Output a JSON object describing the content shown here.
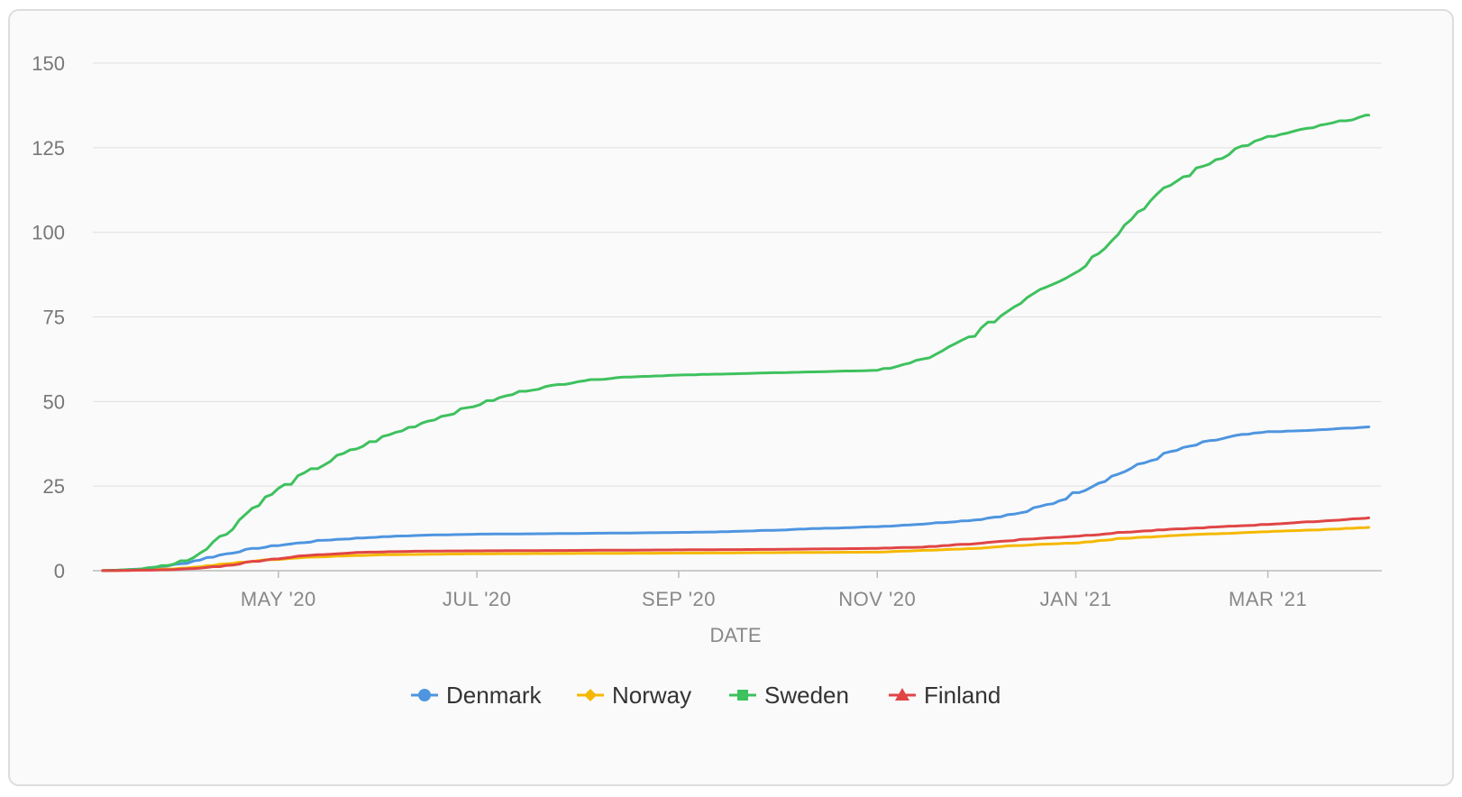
{
  "chart_data": {
    "type": "line",
    "xlabel": "DATE",
    "ylabel": "",
    "ylim": [
      0,
      150
    ],
    "yticks": [
      0,
      25,
      50,
      75,
      100,
      125,
      150
    ],
    "xlim": [
      "2020-03-05",
      "2021-04-05"
    ],
    "xticks": [
      {
        "date": "2020-05-01",
        "label": "MAY '20"
      },
      {
        "date": "2020-07-01",
        "label": "JUL '20"
      },
      {
        "date": "2020-09-01",
        "label": "SEP '20"
      },
      {
        "date": "2020-11-01",
        "label": "NOV '20"
      },
      {
        "date": "2021-01-01",
        "label": "JAN '21"
      },
      {
        "date": "2021-03-01",
        "label": "MAR '21"
      }
    ],
    "grid": true,
    "legend_position": "bottom",
    "series": [
      {
        "name": "Denmark",
        "color": "#4e95e0",
        "marker": "circle",
        "points": [
          [
            "2020-03-08",
            0
          ],
          [
            "2020-03-20",
            0.5
          ],
          [
            "2020-04-01",
            2
          ],
          [
            "2020-04-10",
            4
          ],
          [
            "2020-04-20",
            6
          ],
          [
            "2020-05-01",
            7.5
          ],
          [
            "2020-05-15",
            9
          ],
          [
            "2020-06-01",
            10
          ],
          [
            "2020-06-15",
            10.5
          ],
          [
            "2020-07-01",
            10.8
          ],
          [
            "2020-08-01",
            11
          ],
          [
            "2020-09-01",
            11.3
          ],
          [
            "2020-09-15",
            11.5
          ],
          [
            "2020-10-01",
            12
          ],
          [
            "2020-10-15",
            12.5
          ],
          [
            "2020-11-01",
            13
          ],
          [
            "2020-11-15",
            13.8
          ],
          [
            "2020-12-01",
            15
          ],
          [
            "2020-12-15",
            17
          ],
          [
            "2020-12-25",
            20
          ],
          [
            "2021-01-01",
            23
          ],
          [
            "2021-01-10",
            27
          ],
          [
            "2021-01-20",
            31
          ],
          [
            "2021-01-30",
            35
          ],
          [
            "2021-02-10",
            38
          ],
          [
            "2021-02-20",
            40
          ],
          [
            "2021-03-01",
            41
          ],
          [
            "2021-03-15",
            41.5
          ],
          [
            "2021-04-01",
            42.5
          ]
        ]
      },
      {
        "name": "Norway",
        "color": "#f5b800",
        "marker": "diamond",
        "points": [
          [
            "2020-03-08",
            0
          ],
          [
            "2020-03-25",
            0.3
          ],
          [
            "2020-04-05",
            1
          ],
          [
            "2020-04-15",
            2
          ],
          [
            "2020-04-25",
            3
          ],
          [
            "2020-05-10",
            4
          ],
          [
            "2020-06-01",
            4.7
          ],
          [
            "2020-07-01",
            5
          ],
          [
            "2020-09-01",
            5.2
          ],
          [
            "2020-11-01",
            5.5
          ],
          [
            "2020-11-15",
            6
          ],
          [
            "2020-12-01",
            6.6
          ],
          [
            "2020-12-15",
            7.5
          ],
          [
            "2021-01-01",
            8.2
          ],
          [
            "2021-01-15",
            9.5
          ],
          [
            "2021-02-01",
            10.5
          ],
          [
            "2021-02-15",
            11
          ],
          [
            "2021-03-01",
            11.6
          ],
          [
            "2021-03-15",
            12
          ],
          [
            "2021-04-01",
            12.8
          ]
        ]
      },
      {
        "name": "Sweden",
        "color": "#3ec15e",
        "marker": "square",
        "points": [
          [
            "2020-03-08",
            0
          ],
          [
            "2020-03-20",
            0.5
          ],
          [
            "2020-03-30",
            2
          ],
          [
            "2020-04-05",
            4
          ],
          [
            "2020-04-10",
            8
          ],
          [
            "2020-04-15",
            11
          ],
          [
            "2020-04-20",
            16
          ],
          [
            "2020-04-25",
            20
          ],
          [
            "2020-05-01",
            24
          ],
          [
            "2020-05-10",
            29
          ],
          [
            "2020-05-20",
            34
          ],
          [
            "2020-06-01",
            39
          ],
          [
            "2020-06-15",
            44
          ],
          [
            "2020-07-01",
            49
          ],
          [
            "2020-07-15",
            53
          ],
          [
            "2020-08-01",
            56
          ],
          [
            "2020-08-15",
            57.2
          ],
          [
            "2020-09-01",
            57.8
          ],
          [
            "2020-10-01",
            58.5
          ],
          [
            "2020-11-01",
            59.2
          ],
          [
            "2020-11-10",
            61
          ],
          [
            "2020-11-20",
            64
          ],
          [
            "2020-12-01",
            70
          ],
          [
            "2020-12-10",
            76
          ],
          [
            "2020-12-20",
            83
          ],
          [
            "2021-01-01",
            88
          ],
          [
            "2021-01-10",
            96
          ],
          [
            "2021-01-20",
            106
          ],
          [
            "2021-01-30",
            114
          ],
          [
            "2021-02-10",
            120
          ],
          [
            "2021-02-20",
            125
          ],
          [
            "2021-03-01",
            128
          ],
          [
            "2021-03-15",
            131
          ],
          [
            "2021-04-01",
            134.5
          ]
        ]
      },
      {
        "name": "Finland",
        "color": "#e04545",
        "marker": "triangle",
        "points": [
          [
            "2020-03-08",
            0
          ],
          [
            "2020-03-25",
            0.2
          ],
          [
            "2020-04-05",
            0.6
          ],
          [
            "2020-04-15",
            1.5
          ],
          [
            "2020-04-25",
            3
          ],
          [
            "2020-05-10",
            4.5
          ],
          [
            "2020-05-25",
            5.4
          ],
          [
            "2020-06-15",
            5.8
          ],
          [
            "2020-08-01",
            6
          ],
          [
            "2020-10-01",
            6.3
          ],
          [
            "2020-11-01",
            6.6
          ],
          [
            "2020-11-15",
            7
          ],
          [
            "2020-12-01",
            8
          ],
          [
            "2020-12-15",
            9.2
          ],
          [
            "2021-01-01",
            10.2
          ],
          [
            "2021-01-15",
            11.3
          ],
          [
            "2021-02-01",
            12.3
          ],
          [
            "2021-02-15",
            13
          ],
          [
            "2021-03-01",
            13.7
          ],
          [
            "2021-03-15",
            14.5
          ],
          [
            "2021-04-01",
            15.6
          ]
        ]
      }
    ]
  }
}
